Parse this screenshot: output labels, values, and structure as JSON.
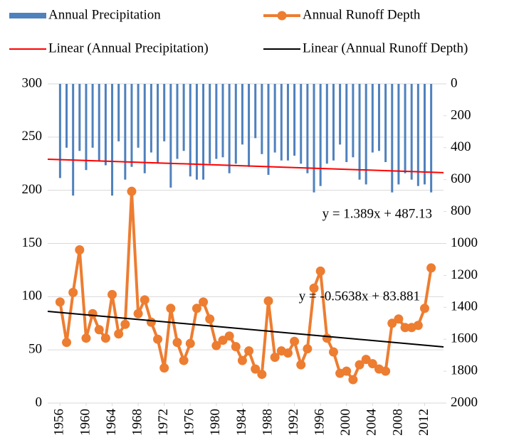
{
  "chart_data": {
    "type": "bar-line",
    "x": [
      1956,
      1957,
      1958,
      1959,
      1960,
      1961,
      1962,
      1963,
      1964,
      1965,
      1966,
      1967,
      1968,
      1969,
      1970,
      1971,
      1972,
      1973,
      1974,
      1975,
      1976,
      1977,
      1978,
      1979,
      1980,
      1981,
      1982,
      1983,
      1984,
      1985,
      1986,
      1987,
      1988,
      1989,
      1990,
      1991,
      1992,
      1993,
      1994,
      1995,
      1996,
      1997,
      1998,
      1999,
      2000,
      2001,
      2002,
      2003,
      2004,
      2005,
      2006,
      2007,
      2008,
      2009,
      2010,
      2011,
      2012,
      2013
    ],
    "xlim": [
      1954.1,
      2014.9
    ],
    "xticks": [
      1956,
      1960,
      1964,
      1968,
      1972,
      1976,
      1980,
      1984,
      1988,
      1992,
      1996,
      2000,
      2004,
      2008,
      2012
    ],
    "ylim": [
      0,
      300
    ],
    "yticks": [
      0,
      50,
      100,
      150,
      200,
      250,
      300
    ],
    "y2lim": [
      2000,
      0
    ],
    "y2ticks": [
      0,
      200,
      400,
      600,
      800,
      1000,
      1200,
      1400,
      1600,
      1800,
      2000
    ],
    "grid": true,
    "series": [
      {
        "name": "Annual Precipitation",
        "type": "bar",
        "axis": "y2",
        "color": "#4f81bd",
        "values": [
          590,
          400,
          700,
          420,
          540,
          400,
          480,
          510,
          700,
          360,
          600,
          520,
          400,
          560,
          430,
          500,
          360,
          650,
          470,
          420,
          580,
          600,
          600,
          500,
          470,
          460,
          560,
          500,
          380,
          520,
          340,
          440,
          570,
          430,
          480,
          480,
          450,
          500,
          560,
          680,
          640,
          500,
          480,
          380,
          490,
          460,
          600,
          630,
          430,
          420,
          490,
          680,
          630,
          560,
          600,
          640,
          630,
          680
        ]
      },
      {
        "name": "Annual Runoff Depth",
        "type": "line",
        "markers": true,
        "color": "#ed7d31",
        "values": [
          95,
          57,
          104,
          144,
          61,
          84,
          69,
          61,
          102,
          65,
          74,
          199,
          84,
          97,
          76,
          60,
          33,
          89,
          57,
          40,
          56,
          89,
          95,
          79,
          54,
          59,
          63,
          53,
          40,
          49,
          32,
          27,
          96,
          43,
          49,
          47,
          58,
          36,
          51,
          108,
          124,
          61,
          48,
          28,
          30,
          22,
          36,
          41,
          37,
          32,
          30,
          75,
          79,
          71,
          71,
          73,
          89,
          127
        ]
      },
      {
        "name": "Linear (Annual Precipitation)",
        "type": "line",
        "axis": "y2",
        "color": "#ff0000",
        "x": [
          1954.1,
          2014.9
        ],
        "values": [
          472,
          556
        ]
      },
      {
        "name": "Linear (Annual Runoff Depth)",
        "type": "line",
        "color": "#000000",
        "x": [
          1954.1,
          2014.9
        ],
        "values": [
          86.2,
          52.8
        ]
      }
    ],
    "annotations": [
      "y = 1.389x + 487.13",
      "y = -0.5638x + 83.881"
    ]
  }
}
